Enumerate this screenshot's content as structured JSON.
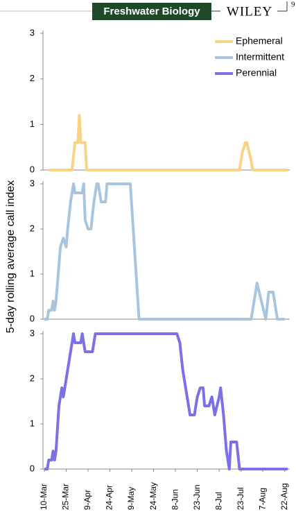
{
  "header": {
    "journal": "Freshwater Biology",
    "publisher": "WILEY",
    "page": "9"
  },
  "chart_data": [
    {
      "type": "line",
      "xlim": [
        "10-Mar",
        "25-Aug"
      ],
      "ylim": [
        0,
        3
      ],
      "yticks": [
        0,
        1,
        2,
        3
      ],
      "legend": "upper right",
      "series": [
        {
          "name": "Ephemeral",
          "color": "#f9d383",
          "x": [
            "13-Mar",
            "29-Mar",
            "31-Mar",
            "2-Apr",
            "3-Apr",
            "4-Apr",
            "7-Apr",
            "8-Apr",
            "22-Jul",
            "24-Jul",
            "26-Jul",
            "27-Jul",
            "30-Jul",
            "31-Jul",
            "24-Aug"
          ],
          "values": [
            0,
            0,
            0.6,
            0.6,
            1.2,
            0.6,
            0.6,
            0,
            0,
            0.4,
            0.6,
            0.6,
            0.2,
            0,
            0
          ]
        }
      ]
    },
    {
      "type": "line",
      "ylabel": "5-day rolling average call index",
      "xlim": [
        "10-Mar",
        "25-Aug"
      ],
      "ylim": [
        0,
        3
      ],
      "yticks": [
        0,
        1,
        2,
        3
      ],
      "series": [
        {
          "name": "Intermittent",
          "color": "#a9c5de",
          "x": [
            "10-Mar",
            "12-Mar",
            "13-Mar",
            "15-Mar",
            "16-Mar",
            "17-Mar",
            "18-Mar",
            "20-Mar",
            "21-Mar",
            "23-Mar",
            "25-Mar",
            "26-Mar",
            "28-Mar",
            "30-Mar",
            "31-Mar",
            "5-Apr",
            "6-Apr",
            "7-Apr",
            "9-Apr",
            "11-Apr",
            "13-Apr",
            "15-Apr",
            "16-Apr",
            "18-Apr",
            "21-Apr",
            "22-Apr",
            "8-May",
            "14-May",
            "30-Jul",
            "3-Aug",
            "9-Aug",
            "11-Aug",
            "14-Aug",
            "17-Aug",
            "22-Aug"
          ],
          "values": [
            0,
            0,
            0.2,
            0.2,
            0.4,
            0.2,
            0.4,
            1.2,
            1.6,
            1.8,
            1.6,
            2.0,
            2.6,
            3.0,
            2.8,
            2.8,
            3.0,
            2.2,
            2.0,
            2.0,
            2.6,
            3.0,
            3.0,
            2.6,
            2.6,
            3.0,
            3.0,
            0,
            0,
            0.8,
            0,
            0.6,
            0.6,
            0,
            0
          ]
        }
      ]
    },
    {
      "type": "line",
      "xlim": [
        "10-Mar",
        "25-Aug"
      ],
      "ylim": [
        0,
        3
      ],
      "yticks": [
        0,
        1,
        2,
        3
      ],
      "xticks": [
        "10-Mar",
        "25-Mar",
        "9-Apr",
        "24-Apr",
        "9-May",
        "24-May",
        "8-Jun",
        "23-Jun",
        "8-Jul",
        "23-Jul",
        "7-Aug",
        "22-Aug"
      ],
      "series": [
        {
          "name": "Perennial",
          "color": "#7b70e6",
          "x": [
            "10-Mar",
            "12-Mar",
            "13-Mar",
            "15-Mar",
            "16-Mar",
            "17-Mar",
            "18-Mar",
            "20-Mar",
            "22-Mar",
            "23-Mar",
            "24-Mar",
            "26-Mar",
            "28-Mar",
            "30-Mar",
            "31-Mar",
            "4-Apr",
            "5-Apr",
            "7-Apr",
            "12-Apr",
            "14-Apr",
            "9-Jun",
            "11-Jun",
            "13-Jun",
            "16-Jun",
            "18-Jun",
            "21-Jun",
            "23-Jun",
            "25-Jun",
            "27-Jun",
            "28-Jun",
            "1-Jul",
            "3-Jul",
            "5-Jul",
            "8-Jul",
            "9-Jul",
            "11-Jul",
            "13-Jul",
            "15-Jul",
            "16-Jul",
            "20-Jul",
            "22-Jul",
            "24-Aug"
          ],
          "values": [
            0,
            0,
            0.2,
            0.2,
            0.4,
            0.2,
            0.4,
            1.4,
            1.8,
            1.6,
            1.8,
            2.2,
            2.6,
            3.0,
            2.8,
            2.8,
            3.0,
            2.6,
            2.6,
            3.0,
            3.0,
            2.8,
            2.2,
            1.6,
            1.2,
            1.2,
            1.6,
            1.8,
            1.8,
            1.4,
            1.4,
            1.6,
            1.2,
            1.6,
            1.8,
            1.2,
            0.4,
            0,
            0.6,
            0.6,
            0,
            0
          ]
        }
      ]
    }
  ]
}
